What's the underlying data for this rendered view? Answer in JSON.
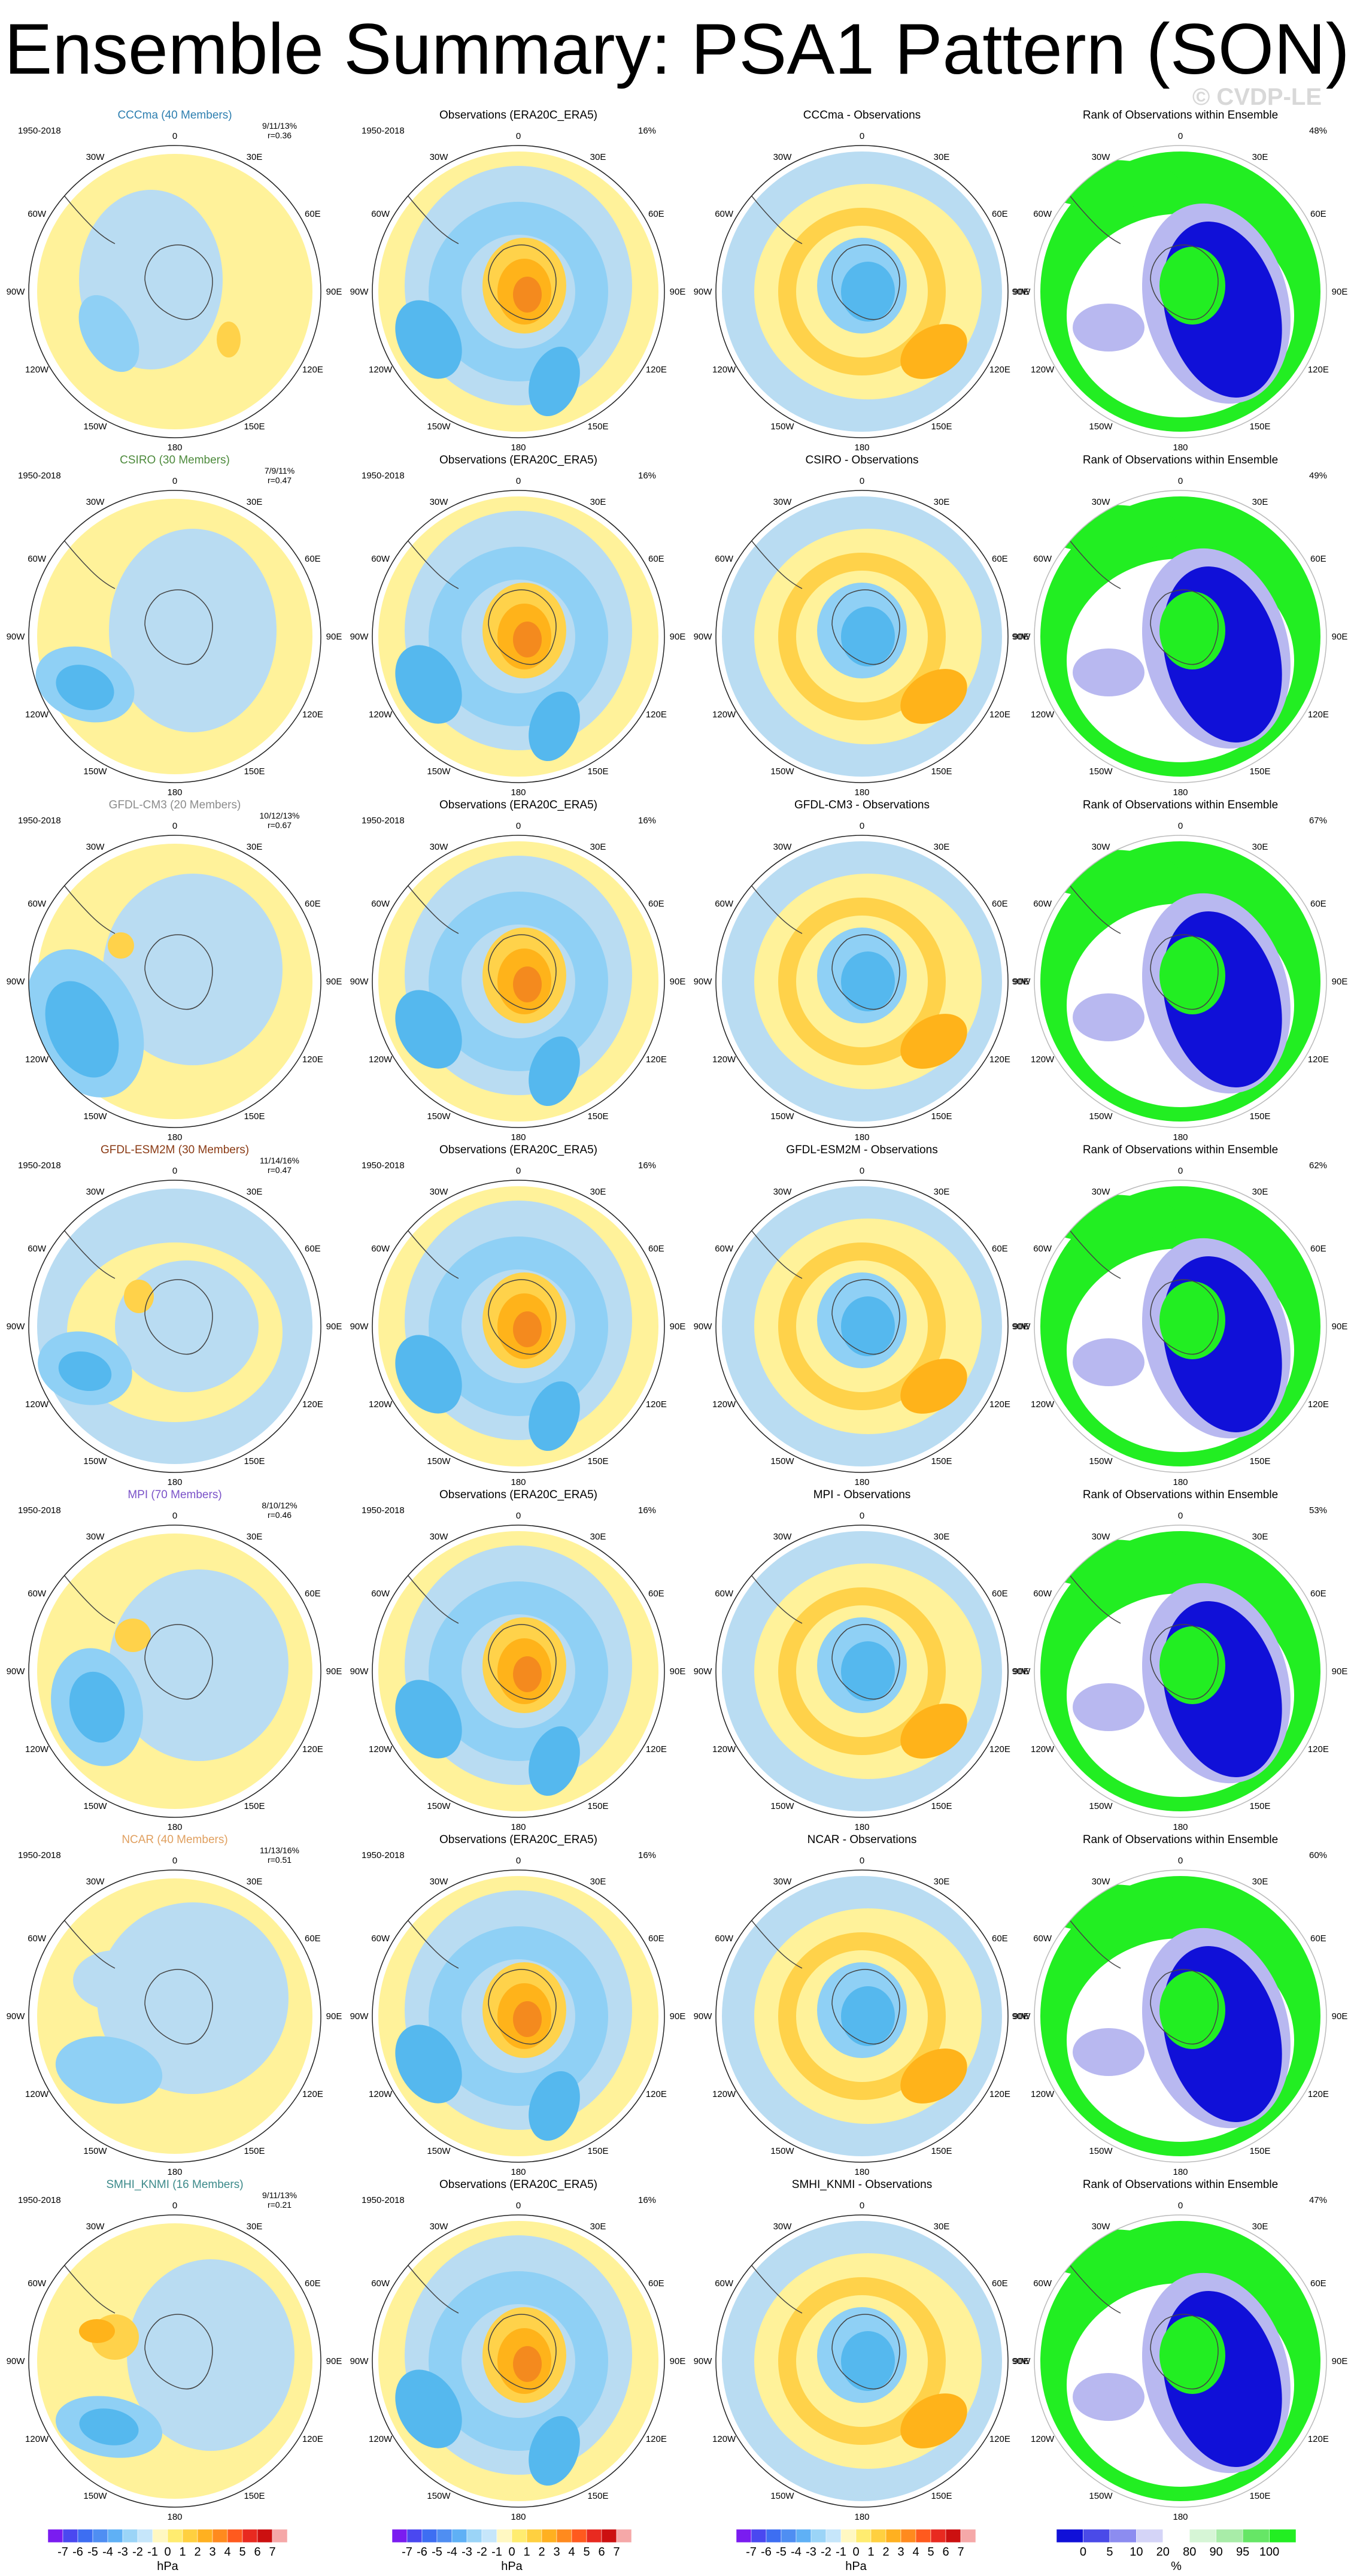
{
  "title": "Ensemble Summary: PSA1 Pattern (SON)",
  "watermark": "© CVDP-LE",
  "period": "1950-2018",
  "observations_title": "Observations (ERA20C_ERA5)",
  "observations_pct": "16%",
  "rank_title": "Rank of Observations within Ensemble",
  "lon_labels": [
    "0",
    "30E",
    "60E",
    "90E",
    "120E",
    "150E",
    "180",
    "150W",
    "120W",
    "90W",
    "60W",
    "30W"
  ],
  "colors": {
    "sea": "#b9dcf2",
    "pos1": "#fff29a",
    "pos2": "#ffd24a",
    "pos3": "#ffb31a",
    "pos4": "#f48a1e",
    "neg1": "#8fd0f5",
    "neg2": "#55b8ee",
    "neg3": "#22a4e8",
    "rank_low": "#1010d8",
    "rank_mid": "#b8b8f0",
    "rank_high": "#22ee22"
  },
  "models": [
    {
      "name": "CCCma (40 Members)",
      "diff_title": "CCCma - Observations",
      "color": "#2e7fb0",
      "stats": "9/11/13%",
      "r": "r=0.36",
      "rank_pct": "48%"
    },
    {
      "name": "CSIRO (30 Members)",
      "diff_title": "CSIRO - Observations",
      "color": "#4d8a3c",
      "stats": "7/9/11%",
      "r": "r=0.47",
      "rank_pct": "49%"
    },
    {
      "name": "GFDL-CM3 (20 Members)",
      "diff_title": "GFDL-CM3 - Observations",
      "color": "#8c8c8c",
      "stats": "10/12/13%",
      "r": "r=0.67",
      "rank_pct": "67%"
    },
    {
      "name": "GFDL-ESM2M (30 Members)",
      "diff_title": "GFDL-ESM2M - Observations",
      "color": "#8a3a14",
      "stats": "11/14/16%",
      "r": "r=0.47",
      "rank_pct": "62%"
    },
    {
      "name": "MPI (70 Members)",
      "diff_title": "MPI - Observations",
      "color": "#7a52c8",
      "stats": "8/10/12%",
      "r": "r=0.46",
      "rank_pct": "53%"
    },
    {
      "name": "NCAR (40 Members)",
      "diff_title": "NCAR - Observations",
      "color": "#e0a060",
      "stats": "11/13/16%",
      "r": "r=0.51",
      "rank_pct": "60%"
    },
    {
      "name": "SMHI_KNMI (16 Members)",
      "diff_title": "SMHI_KNMI - Observations",
      "color": "#3c8a8a",
      "stats": "9/11/13%",
      "r": "r=0.21",
      "rank_pct": "47%"
    }
  ],
  "colorbar_hpa": {
    "labels": [
      "-7",
      "-6",
      "-5",
      "-4",
      "-3",
      "-2",
      "-1",
      "0",
      "1",
      "2",
      "3",
      "4",
      "5",
      "6",
      "7"
    ],
    "unit": "hPa",
    "colors": [
      "#7a1cf0",
      "#4a48f0",
      "#3d6ef2",
      "#4f8ef2",
      "#5fb0f5",
      "#9bd4f7",
      "#c6e6fa",
      "#fff8c2",
      "#ffec70",
      "#ffd040",
      "#ffb020",
      "#ff8a1e",
      "#ff5a1e",
      "#e82a20",
      "#cc1010",
      "#f5a8a8"
    ]
  },
  "colorbar_pct": {
    "labels": [
      "0",
      "5",
      "10",
      "20",
      "80",
      "90",
      "95",
      "100"
    ],
    "unit": "%",
    "colors": [
      "#1010d8",
      "#4a4ae8",
      "#8c8cf0",
      "#d4d4f7",
      "#ffffff",
      "#d6f5d6",
      "#a8eca8",
      "#66e666",
      "#22ee22"
    ]
  }
}
